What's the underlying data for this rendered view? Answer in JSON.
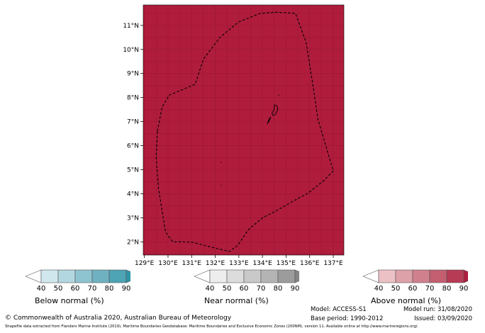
{
  "map": {
    "fill_color": "#b01c3c",
    "grid_color": "#9a1734",
    "boundary_style": "dashed",
    "lat_ticks": [
      {
        "deg": 2,
        "label": "2°N"
      },
      {
        "deg": 3,
        "label": "3°N"
      },
      {
        "deg": 4,
        "label": "4°N"
      },
      {
        "deg": 5,
        "label": "5°N"
      },
      {
        "deg": 6,
        "label": "6°N"
      },
      {
        "deg": 7,
        "label": "7°N"
      },
      {
        "deg": 8,
        "label": "8°N"
      },
      {
        "deg": 9,
        "label": "9°N"
      },
      {
        "deg": 10,
        "label": "10°N"
      },
      {
        "deg": 11,
        "label": "11°N"
      }
    ],
    "lon_ticks": [
      {
        "deg": 129,
        "label": "129°E"
      },
      {
        "deg": 130,
        "label": "130°E"
      },
      {
        "deg": 131,
        "label": "131°E"
      },
      {
        "deg": 132,
        "label": "132°E"
      },
      {
        "deg": 133,
        "label": "133°E"
      },
      {
        "deg": 134,
        "label": "134°E"
      },
      {
        "deg": 135,
        "label": "135°E"
      },
      {
        "deg": 136,
        "label": "136°E"
      },
      {
        "deg": 137,
        "label": "137°E"
      }
    ],
    "lon_range": [
      128.95,
      137.45
    ],
    "lat_range": [
      1.45,
      11.85
    ],
    "eez_boundary": [
      [
        129.55,
        6.6
      ],
      [
        129.75,
        7.6
      ],
      [
        130.05,
        8.1
      ],
      [
        131.15,
        8.55
      ],
      [
        131.5,
        9.6
      ],
      [
        132.2,
        10.5
      ],
      [
        133.0,
        11.15
      ],
      [
        133.9,
        11.5
      ],
      [
        134.6,
        11.55
      ],
      [
        135.4,
        11.5
      ],
      [
        135.85,
        10.3
      ],
      [
        136.1,
        8.75
      ],
      [
        136.35,
        7.1
      ],
      [
        136.65,
        6.1
      ],
      [
        137.0,
        4.95
      ],
      [
        136.6,
        4.55
      ],
      [
        135.9,
        4.0
      ],
      [
        135.5,
        3.8
      ],
      [
        134.6,
        3.3
      ],
      [
        134.0,
        3.0
      ],
      [
        133.4,
        2.5
      ],
      [
        132.95,
        1.85
      ],
      [
        132.6,
        1.6
      ],
      [
        131.55,
        1.85
      ],
      [
        131.05,
        1.98
      ],
      [
        130.6,
        2.0
      ],
      [
        130.2,
        2.0
      ],
      [
        129.9,
        2.4
      ],
      [
        129.6,
        4.2
      ],
      [
        129.5,
        5.5
      ],
      [
        129.55,
        6.6
      ]
    ],
    "islands": [
      [
        [
          134.5,
          7.7
        ],
        [
          134.62,
          7.65
        ],
        [
          134.65,
          7.5
        ],
        [
          134.55,
          7.3
        ],
        [
          134.45,
          7.25
        ],
        [
          134.4,
          7.35
        ],
        [
          134.5,
          7.5
        ],
        [
          134.5,
          7.7
        ]
      ],
      [
        [
          134.2,
          6.9
        ],
        [
          134.28,
          7.1
        ],
        [
          134.35,
          7.2
        ],
        [
          134.3,
          7.05
        ],
        [
          134.2,
          6.9
        ]
      ]
    ],
    "specks": [
      [
        134.7,
        8.1
      ],
      [
        132.25,
        5.3
      ],
      [
        132.25,
        4.35
      ]
    ]
  },
  "colorbars": [
    {
      "id": "below",
      "label": "Below normal (%)",
      "ticks": [
        "40",
        "50",
        "60",
        "70",
        "80",
        "90"
      ],
      "colors": [
        "#ffffff",
        "#d0e7ee",
        "#b3d7e0",
        "#8ec4d0",
        "#6fb1c1",
        "#4ea3b5",
        "#2f95a8"
      ]
    },
    {
      "id": "near",
      "label": "Near normal (%)",
      "ticks": [
        "40",
        "50",
        "60",
        "70",
        "80",
        "90"
      ],
      "colors": [
        "#ffffff",
        "#ededed",
        "#dcdcdc",
        "#c9c9c9",
        "#b4b4b4",
        "#9c9c9c",
        "#858585"
      ]
    },
    {
      "id": "above",
      "label": "Above normal (%)",
      "ticks": [
        "40",
        "50",
        "60",
        "70",
        "80",
        "90"
      ],
      "colors": [
        "#ffffff",
        "#ebc1c6",
        "#dda1a9",
        "#d0808c",
        "#c35f70",
        "#b83b55",
        "#ad1d3e"
      ]
    }
  ],
  "footer": {
    "copyright": "© Commonwealth of Australia 2020, Australian Bureau of Meteorology",
    "shapefile_note": "Shapefile data extracted from Flanders Marine Institute (2019), Maritime Boundaries Geodatabase: Maritime Boundaries and Exclusive Economic Zones (200NM), version 11. Available online at http://www.marineregions.org/.",
    "model": "Model: ACCESS-S1",
    "base_period": "Base period: 1990-2012",
    "model_run": "Model run: 31/08/2020",
    "issued": "Issued: 03/09/2020"
  }
}
